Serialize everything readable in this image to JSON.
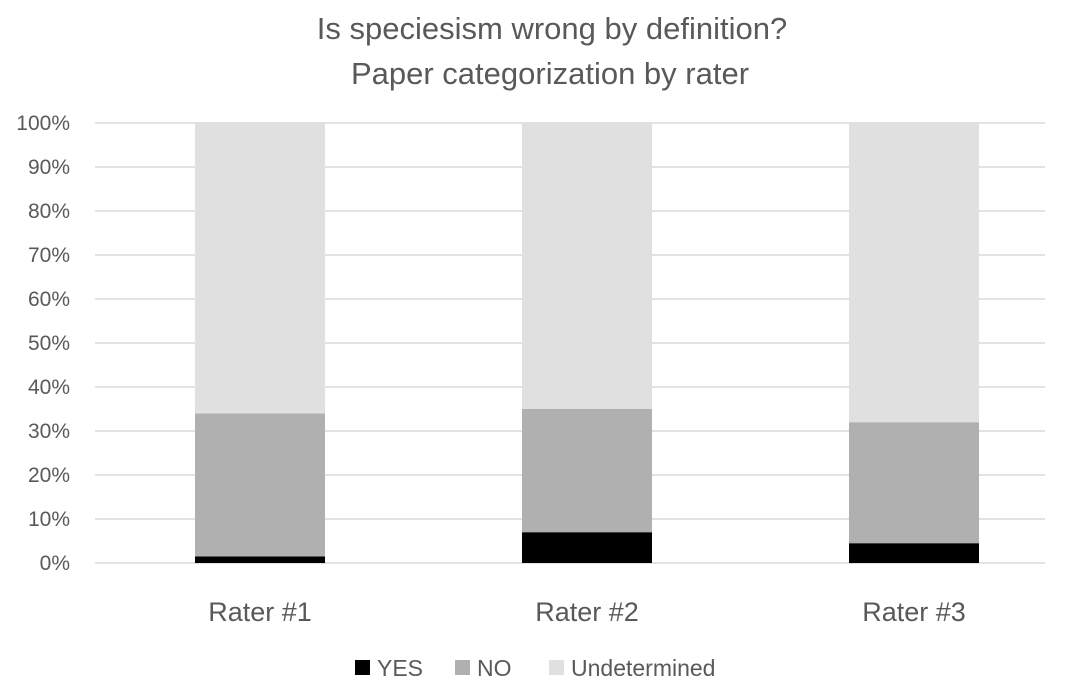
{
  "chart_data": {
    "type": "bar",
    "stacked": true,
    "percent_stacked": true,
    "title": "Is speciesism wrong by definition?",
    "subtitle": "Paper categorization by rater",
    "categories": [
      "Rater #1",
      "Rater #2",
      "Rater #3"
    ],
    "series": [
      {
        "name": "YES",
        "color": "#000000",
        "values": [
          1.5,
          7.0,
          4.5
        ]
      },
      {
        "name": "NO",
        "color": "#b0b0b0",
        "values": [
          32.5,
          28.0,
          27.5
        ]
      },
      {
        "name": "Undetermined",
        "color": "#e0e0e0",
        "values": [
          66.0,
          65.0,
          68.0
        ]
      }
    ],
    "y_ticks": [
      "0%",
      "10%",
      "20%",
      "30%",
      "40%",
      "50%",
      "60%",
      "70%",
      "80%",
      "90%",
      "100%"
    ],
    "ylim": [
      0,
      100
    ],
    "grid": true,
    "gridline_color": "#d9d9d9",
    "legend_position": "bottom"
  }
}
